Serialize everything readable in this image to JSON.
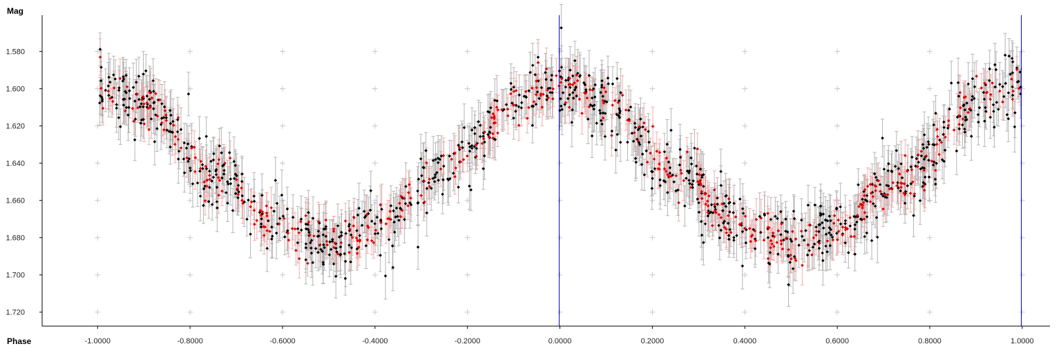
{
  "chart_data": {
    "type": "scatter",
    "title": "",
    "xlabel": "Phase",
    "ylabel": "Mag",
    "xlim": [
      -1.12,
      1.06
    ],
    "ylim": [
      1.5605,
      1.7275
    ],
    "y_inverted": true,
    "grid": "plus-markers",
    "x_ticks": [
      -1.0,
      -0.8,
      -0.6,
      -0.4,
      -0.2,
      0.0,
      0.2,
      0.4,
      0.6,
      0.8,
      1.0
    ],
    "x_tick_labels": [
      "-1.0000",
      "-0.8000",
      "-0.6000",
      "-0.4000",
      "-0.2000",
      "0.0000",
      "0.2000",
      "0.4000",
      "0.6000",
      "0.8000",
      "1.0000"
    ],
    "y_ticks": [
      1.58,
      1.6,
      1.62,
      1.64,
      1.66,
      1.68,
      1.7,
      1.72
    ],
    "y_tick_labels": [
      "1.580",
      "1.600",
      "1.620",
      "1.640",
      "1.660",
      "1.680",
      "1.700",
      "1.720"
    ],
    "vertical_markers": [
      -0.0015,
      0.998
    ],
    "light_curve": {
      "phase": [
        0.0,
        0.1,
        0.25,
        0.4,
        0.5,
        0.6,
        0.75,
        0.9,
        1.0
      ],
      "mag": [
        1.597,
        1.608,
        1.646,
        1.674,
        1.684,
        1.674,
        1.646,
        1.608,
        1.597
      ]
    },
    "series": [
      {
        "name": "",
        "color": "#000000",
        "error_color": "#a8a8a8",
        "points": 880,
        "error": 0.011,
        "scatter": 0.009
      },
      {
        "name": "",
        "color": "#e00000",
        "error_color": "#f0a0a0",
        "points": 440,
        "error": 0.009,
        "scatter": 0.006
      }
    ],
    "colors": {
      "axis": "#000000",
      "marker_line": "#0000c0",
      "grid": "#c8c8c8"
    }
  }
}
